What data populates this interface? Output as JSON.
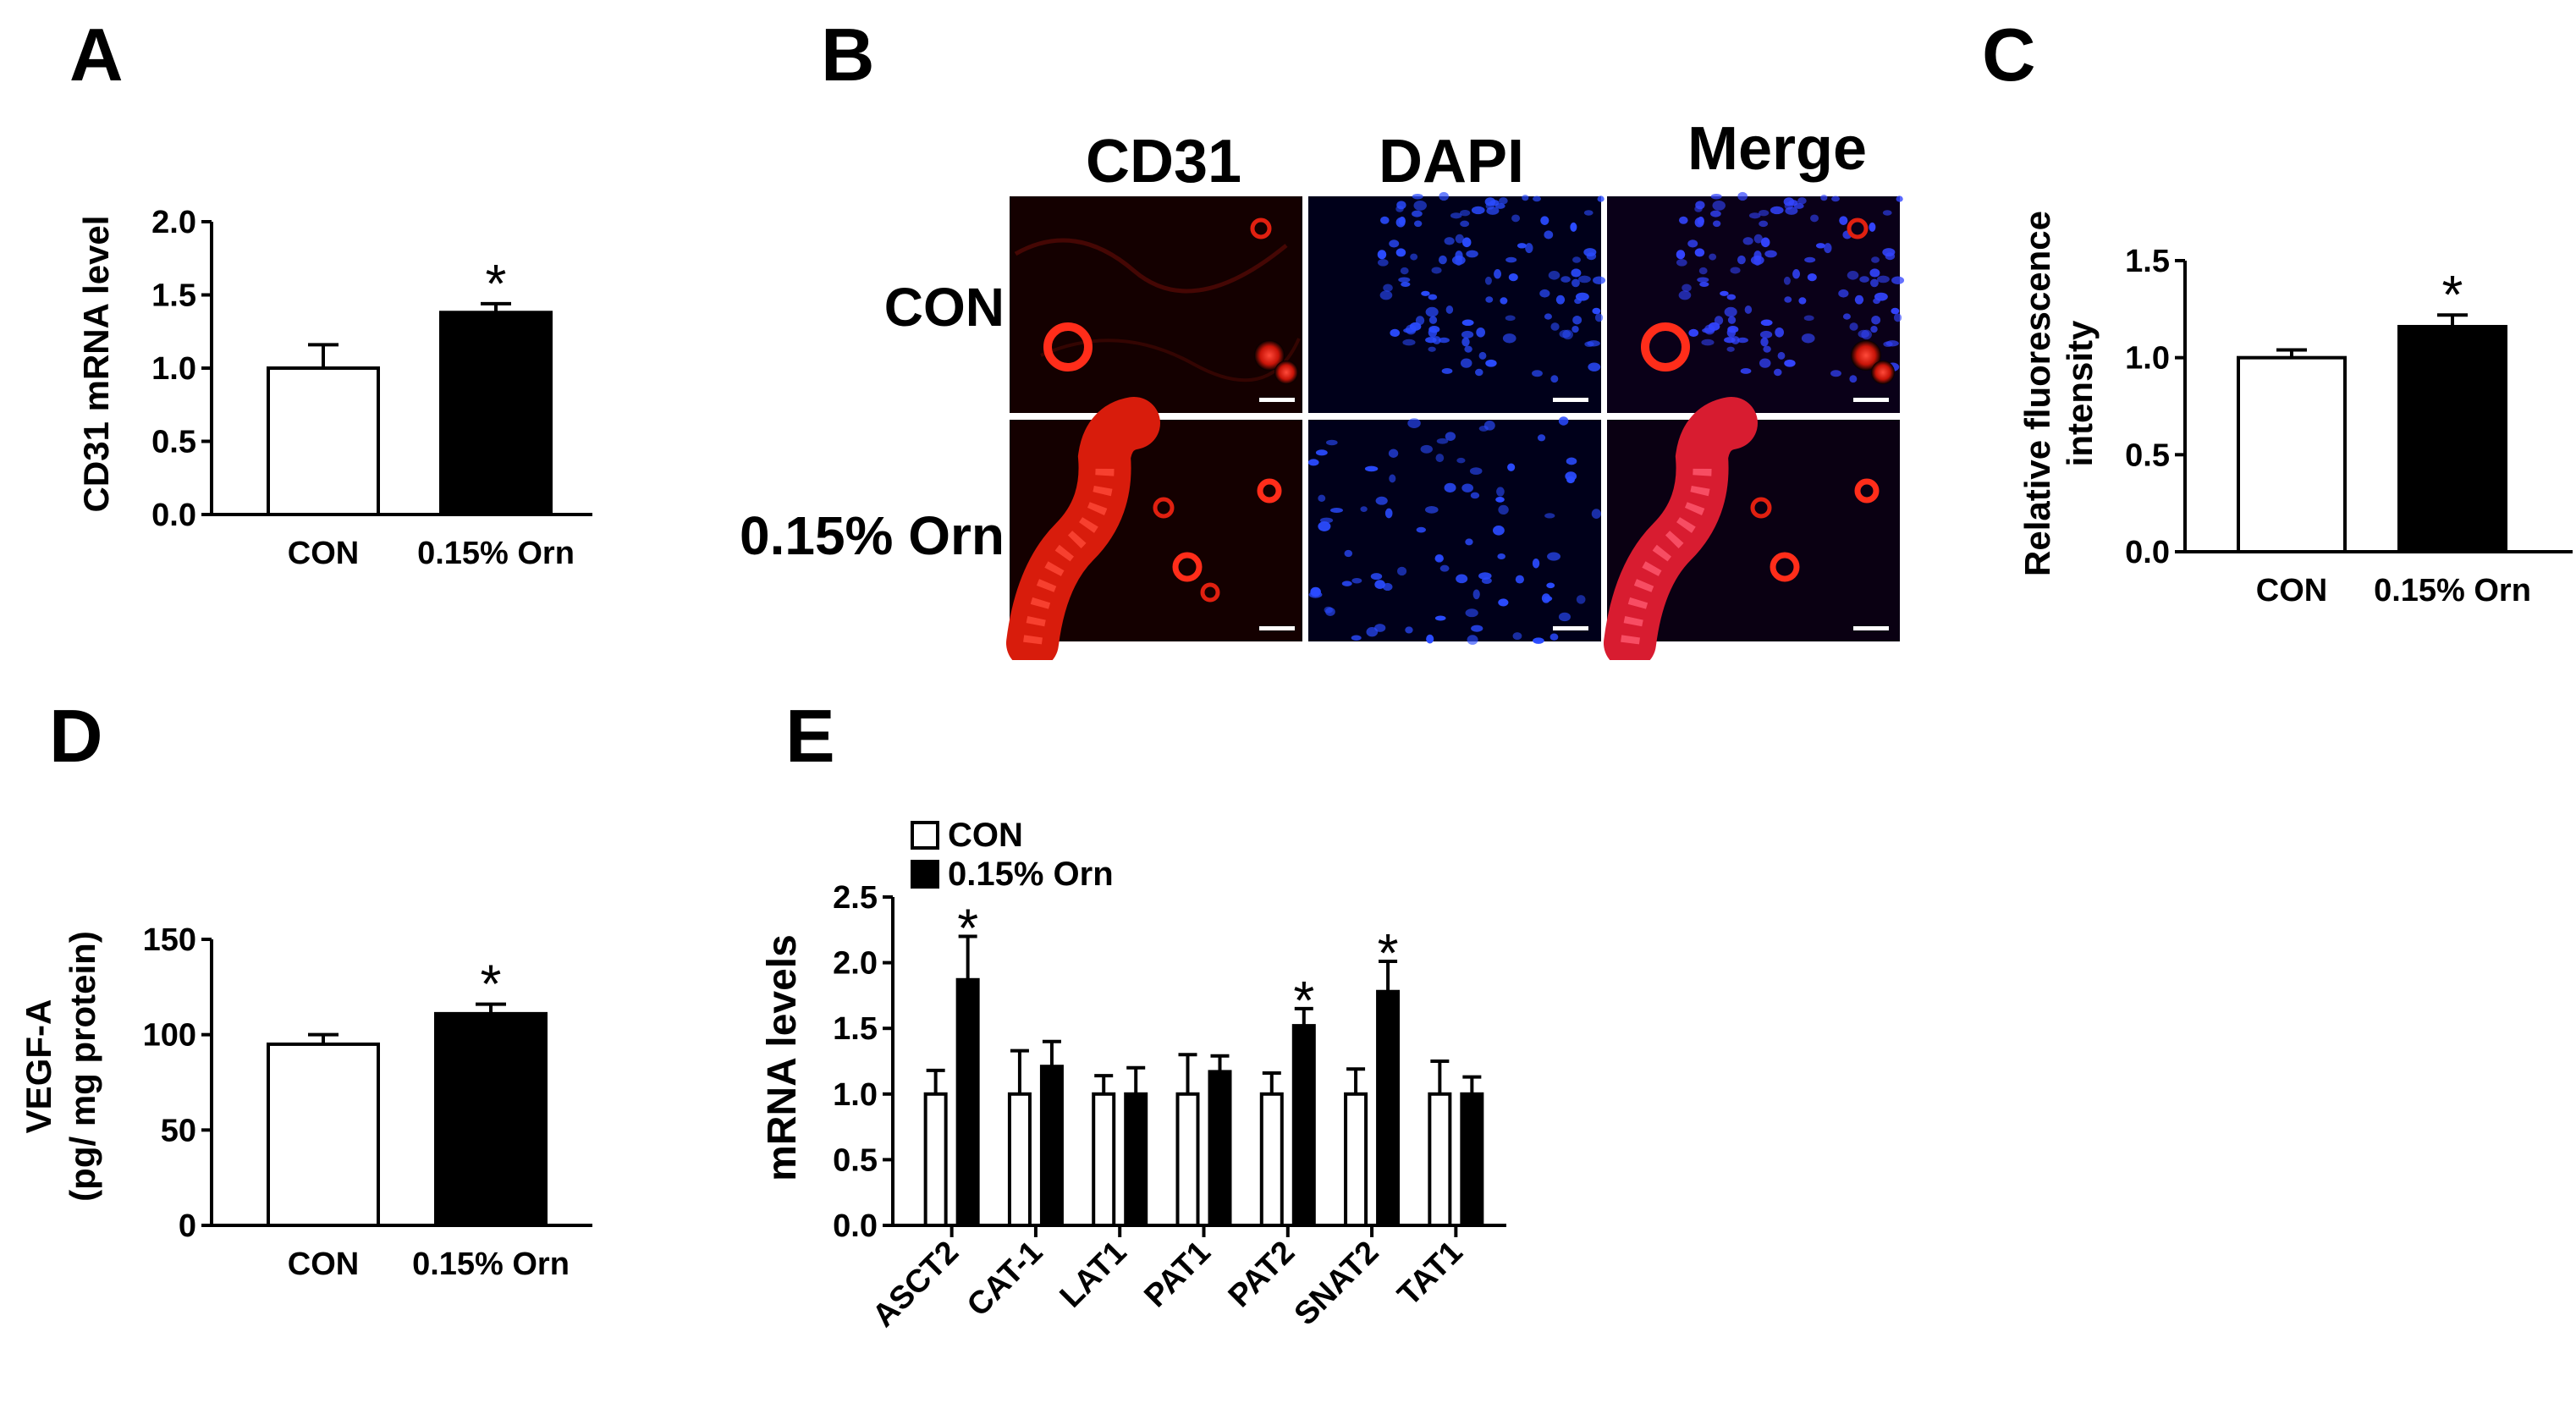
{
  "panel_labels": {
    "A": "A",
    "B": "B",
    "C": "C",
    "D": "D",
    "E": "E"
  },
  "colors": {
    "con_fill": "#ffffff",
    "orn_fill": "#000000",
    "axis": "#000000"
  },
  "chart_data": [
    {
      "id": "A",
      "type": "bar",
      "categories": [
        "CON",
        "0.15% Orn"
      ],
      "values": [
        1.0,
        1.38
      ],
      "errors": [
        0.16,
        0.06
      ],
      "significance": [
        "",
        "*"
      ],
      "ylabel": "CD31 mRNA level",
      "ylim": [
        0,
        2.0
      ],
      "yticks": [
        "0.0",
        "0.5",
        "1.0",
        "1.5",
        "2.0"
      ],
      "grid": false
    },
    {
      "id": "C",
      "type": "bar",
      "categories": [
        "CON",
        "0.15% Orn"
      ],
      "values": [
        1.0,
        1.16
      ],
      "errors": [
        0.04,
        0.06
      ],
      "significance": [
        "",
        "*"
      ],
      "ylabel_lines": [
        "Relative fluorescence",
        "intensity"
      ],
      "ylim": [
        0,
        1.5
      ],
      "yticks": [
        "0.0",
        "0.5",
        "1.0",
        "1.5"
      ],
      "grid": false
    },
    {
      "id": "D",
      "type": "bar",
      "categories": [
        "CON",
        "0.15% Orn"
      ],
      "values": [
        95,
        111
      ],
      "errors": [
        5,
        5
      ],
      "significance": [
        "",
        "*"
      ],
      "ylabel_lines": [
        "VEGF-A",
        "(pg/ mg protein)"
      ],
      "ylim": [
        0,
        150
      ],
      "yticks": [
        "0",
        "50",
        "100",
        "150"
      ],
      "grid": false
    },
    {
      "id": "E",
      "type": "bar",
      "categories": [
        "ASCT2",
        "CAT-1",
        "LAT1",
        "PAT1",
        "PAT2",
        "SNAT2",
        "TAT1"
      ],
      "series": [
        {
          "name": "CON",
          "values": [
            1.0,
            1.0,
            1.0,
            1.0,
            1.0,
            1.0,
            1.0
          ],
          "errors": [
            0.18,
            0.33,
            0.14,
            0.3,
            0.16,
            0.19,
            0.25
          ]
        },
        {
          "name": "0.15% Orn",
          "values": [
            1.87,
            1.21,
            1.0,
            1.17,
            1.52,
            1.78,
            1.0
          ],
          "errors": [
            0.33,
            0.19,
            0.2,
            0.12,
            0.13,
            0.23,
            0.13
          ]
        }
      ],
      "significance": [
        "*",
        "",
        "",
        "",
        "*",
        "*",
        ""
      ],
      "ylabel": "mRNA levels",
      "ylim": [
        0,
        2.5
      ],
      "yticks": [
        "0.0",
        "0.5",
        "1.0",
        "1.5",
        "2.0",
        "2.5"
      ],
      "legend": "top-left",
      "grid": false
    }
  ],
  "microscopy": {
    "columns": [
      "CD31",
      "DAPI",
      "Merge"
    ],
    "rows": [
      "CON",
      "0.15% Orn"
    ]
  }
}
